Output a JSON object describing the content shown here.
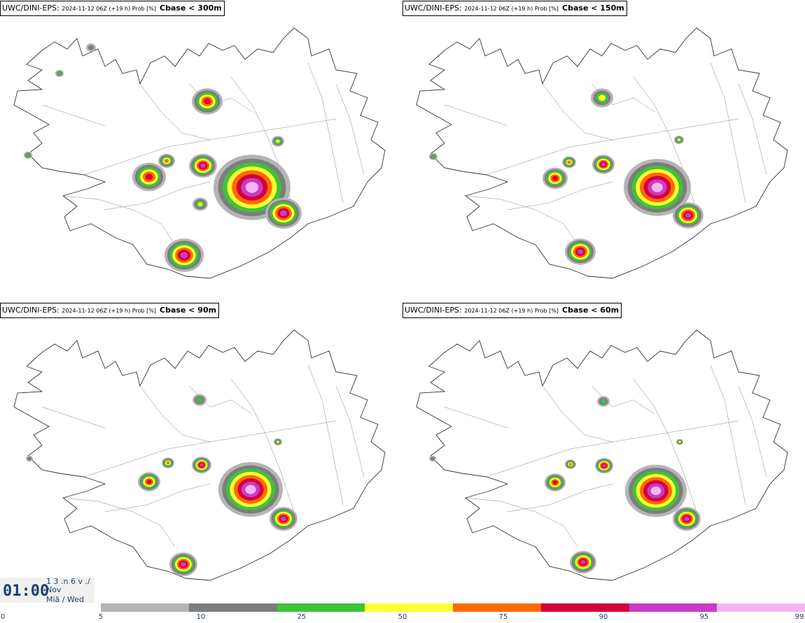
{
  "panels": [
    {
      "source": "UWC/DINI-EPS",
      "meta": "2024-11-12 06Z (+19 h) Prob [%]",
      "variable": "Cbase < 300m"
    },
    {
      "source": "UWC/DINI-EPS",
      "meta": "2024-11-12 06Z (+19 h) Prob [%]",
      "variable": "Cbase < 150m"
    },
    {
      "source": "UWC/DINI-EPS",
      "meta": "2024-11-12 06Z (+19 h) Prob [%]",
      "variable": "Cbase < 90m"
    },
    {
      "source": "UWC/DINI-EPS",
      "meta": "2024-11-12 06Z (+19 h) Prob [%]",
      "variable": "Cbase < 60m"
    }
  ],
  "clock": {
    "time": "01:00",
    "line1": "1 3 .n 6 v ./",
    "line2": "Nov",
    "line3": "Miã / Wed"
  },
  "legend": {
    "ticks": [
      "0",
      "5",
      "10",
      "25",
      "50",
      "75",
      "90",
      "95",
      "99"
    ],
    "colors": [
      "#b4b4b4",
      "#7d7d7d",
      "#3dc43a",
      "#ffff33",
      "#ff6a00",
      "#d4003c",
      "#c83cc8",
      "#f3b5f3"
    ]
  }
}
